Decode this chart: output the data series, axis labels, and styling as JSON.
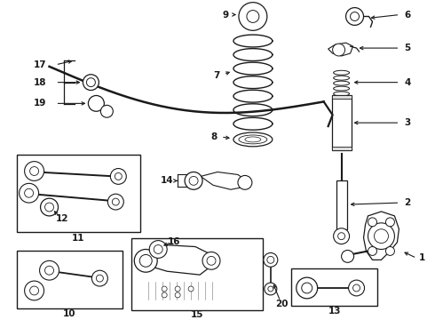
{
  "background": "#ffffff",
  "line_color": "#1a1a1a",
  "label_color": "#111111",
  "figsize": [
    4.9,
    3.6
  ],
  "dpi": 100
}
